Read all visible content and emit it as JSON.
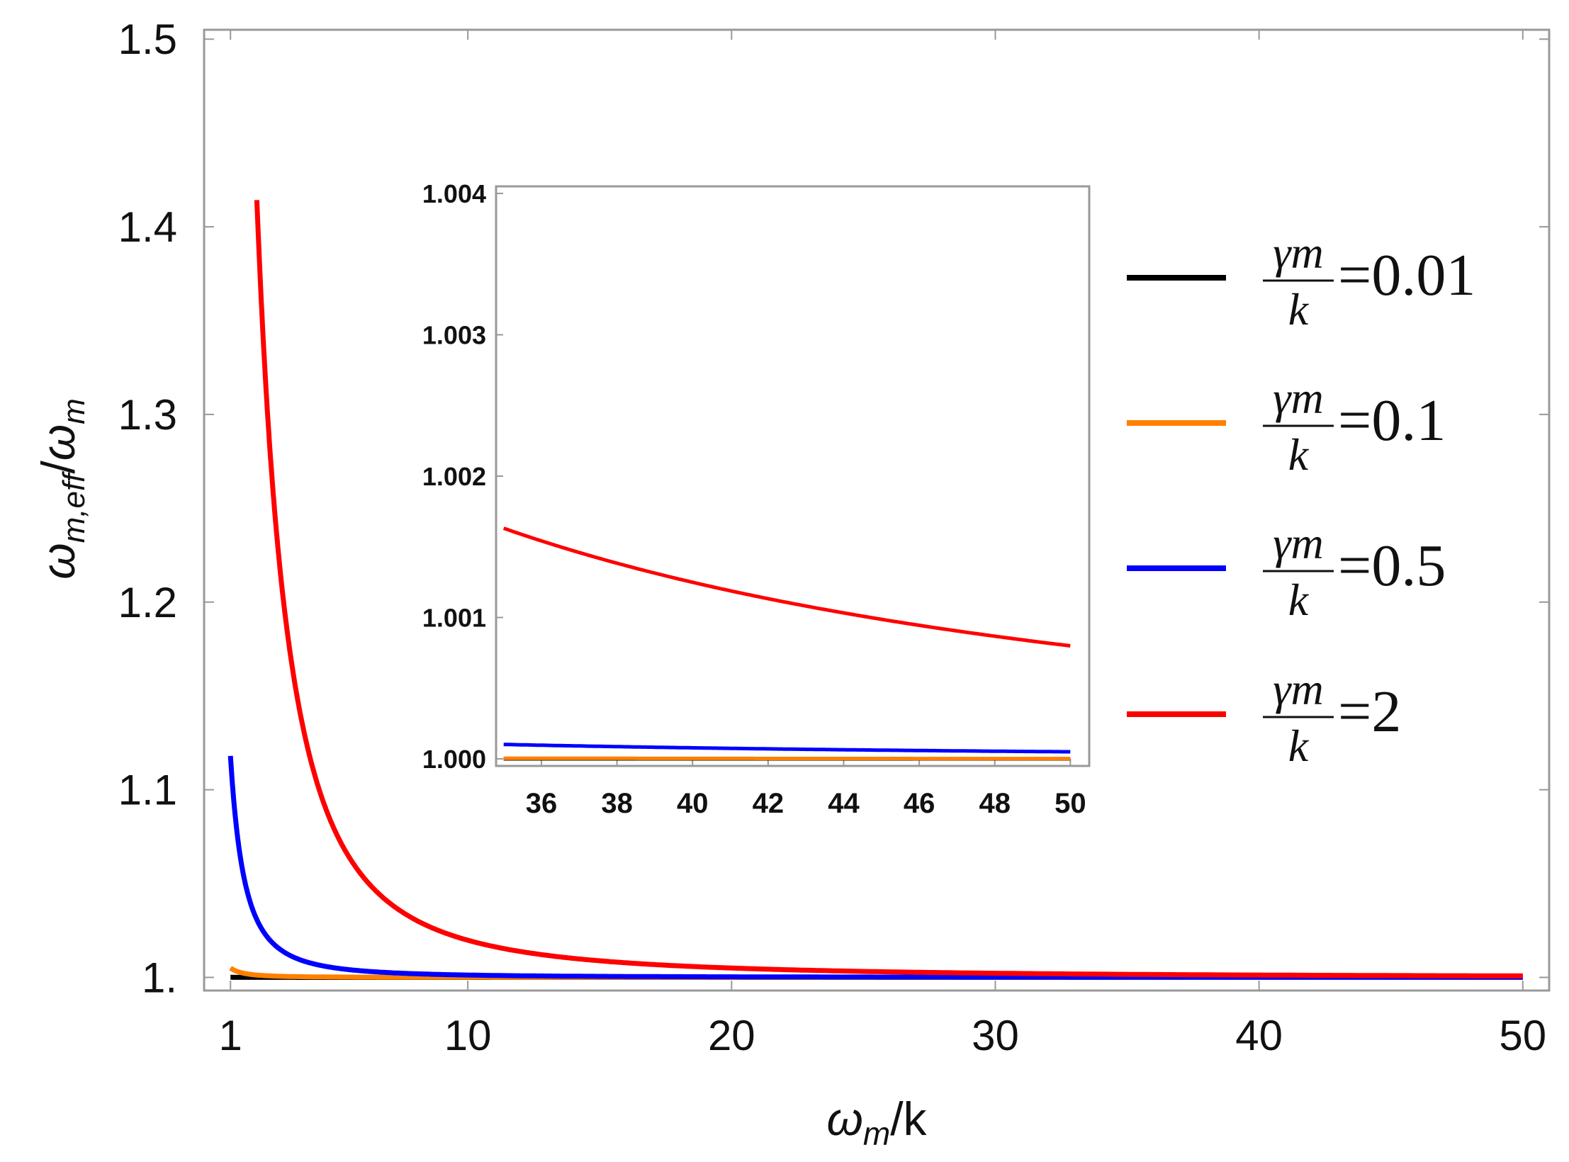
{
  "chart_data": {
    "type": "line",
    "main": {
      "xlabel_symbol": "ω",
      "xlabel_sub": "m",
      "xlabel_rest": "/k",
      "ylabel_symbol": "ω",
      "ylabel_sub": "m,eff",
      "ylabel_slash": "/",
      "ylabel_symbol2": "ω",
      "ylabel_sub2": "m",
      "xlim": [
        0,
        51
      ],
      "ylim": [
        0.993,
        1.505
      ],
      "xticks": [
        1,
        10,
        20,
        30,
        40,
        50
      ],
      "xtick_labels": [
        "1",
        "10",
        "20",
        "30",
        "40",
        "50"
      ],
      "yticks": [
        1.0,
        1.1,
        1.2,
        1.3,
        1.4,
        1.5
      ],
      "ytick_labels": [
        "1.",
        "1.1",
        "1.2",
        "1.3",
        "1.4",
        "1.5"
      ]
    },
    "inset": {
      "xlim": [
        34.8,
        50.5
      ],
      "ylim": [
        0.99995,
        1.00405
      ],
      "xticks": [
        36,
        38,
        40,
        42,
        44,
        46,
        48,
        50
      ],
      "xtick_labels": [
        "36",
        "38",
        "40",
        "42",
        "44",
        "46",
        "48",
        "50"
      ],
      "yticks": [
        1.0,
        1.001,
        1.002,
        1.003,
        1.004
      ],
      "ytick_labels": [
        "1.000",
        "1.001",
        "1.002",
        "1.003",
        "1.004"
      ]
    },
    "series": [
      {
        "name": "γm/k=0.01",
        "gamma_over_k": 0.01,
        "color": "#000000",
        "main_x_start": 1.0
      },
      {
        "name": "γm/k=0.1",
        "gamma_over_k": 0.1,
        "color": "#ff8000",
        "main_x_start": 1.0
      },
      {
        "name": "γm/k=0.5",
        "gamma_over_k": 0.5,
        "color": "#0000ff",
        "main_x_start": 1.0
      },
      {
        "name": "γm/k=2",
        "gamma_over_k": 2,
        "color": "#ff0000",
        "main_x_start": 2.0
      }
    ],
    "legend": {
      "placement": "right",
      "entries": [
        {
          "frac_top": "γm",
          "frac_bottom": "k",
          "value": "=0.01"
        },
        {
          "frac_top": "γm",
          "frac_bottom": "k",
          "value": "=0.1"
        },
        {
          "frac_top": "γm",
          "frac_bottom": "k",
          "value": "=0.5"
        },
        {
          "frac_top": "γm",
          "frac_bottom": "k",
          "value": "=2"
        }
      ]
    }
  }
}
